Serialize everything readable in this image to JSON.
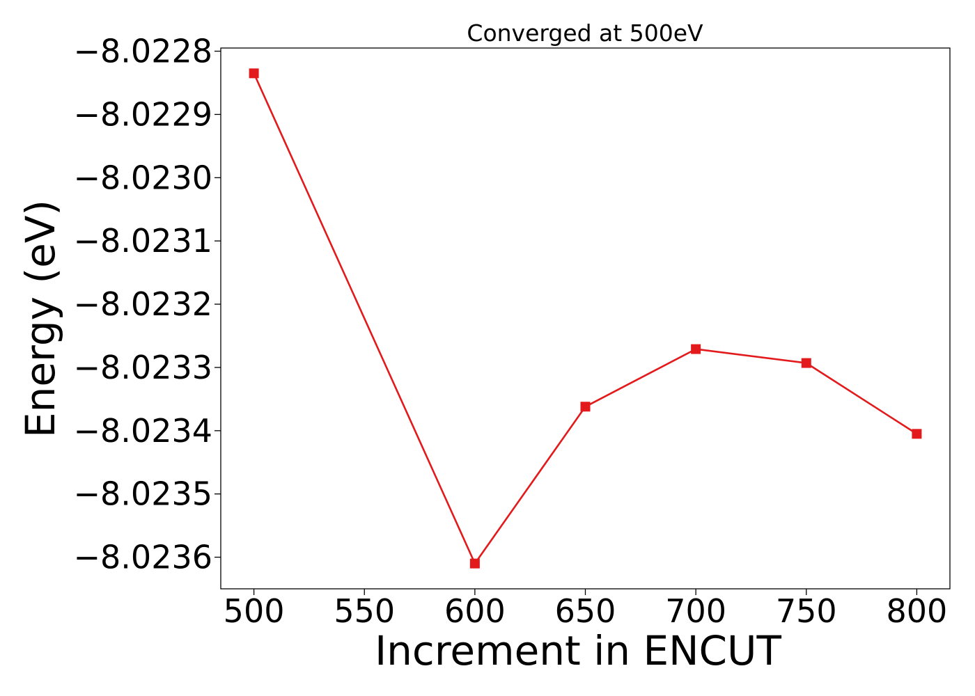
{
  "chart_data": {
    "type": "line",
    "title": "Converged at 500eV",
    "xlabel": "Increment in ENCUT",
    "ylabel": "Energy (eV)",
    "x": [
      500,
      600,
      650,
      700,
      750,
      800
    ],
    "series": [
      {
        "values": [
          -8.022835,
          -8.02361,
          -8.023362,
          -8.023271,
          -8.023293,
          -8.023405
        ]
      }
    ],
    "xticks": [
      500,
      550,
      600,
      650,
      700,
      750,
      800
    ],
    "xtick_labels": [
      "500",
      "550",
      "600",
      "650",
      "700",
      "750",
      "800"
    ],
    "yticks": [
      -8.0228,
      -8.0229,
      -8.023,
      -8.0231,
      -8.0232,
      -8.0233,
      -8.0234,
      -8.0235,
      -8.0236
    ],
    "ytick_labels": [
      "−8.0228",
      "−8.0229",
      "−8.0230",
      "−8.0231",
      "−8.0232",
      "−8.0233",
      "−8.0234",
      "−8.0235",
      "−8.0236"
    ],
    "xlim": [
      485,
      815
    ],
    "ylim": [
      -8.02365,
      -8.022795
    ],
    "color": "#e31a1c",
    "marker": "square",
    "grid": false,
    "legend": false
  }
}
